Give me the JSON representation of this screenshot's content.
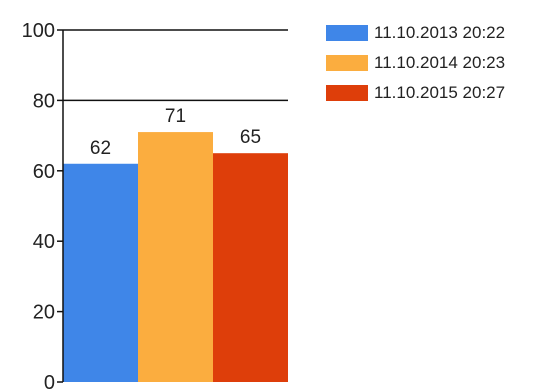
{
  "chart_data": {
    "type": "bar",
    "title": "",
    "xlabel": "",
    "ylabel": "",
    "ylim": [
      0,
      100
    ],
    "yticks": [
      0,
      20,
      40,
      60,
      80,
      100
    ],
    "grid_lines": [
      80,
      100
    ],
    "legend_position": "right",
    "series": [
      {
        "name": "11.10.2013 20:22",
        "value": 62,
        "color": "#3f86e8"
      },
      {
        "name": "11.10.2014 20:23",
        "value": 71,
        "color": "#fbad3f"
      },
      {
        "name": "11.10.2015 20:27",
        "value": 65,
        "color": "#de3e0a"
      }
    ]
  }
}
